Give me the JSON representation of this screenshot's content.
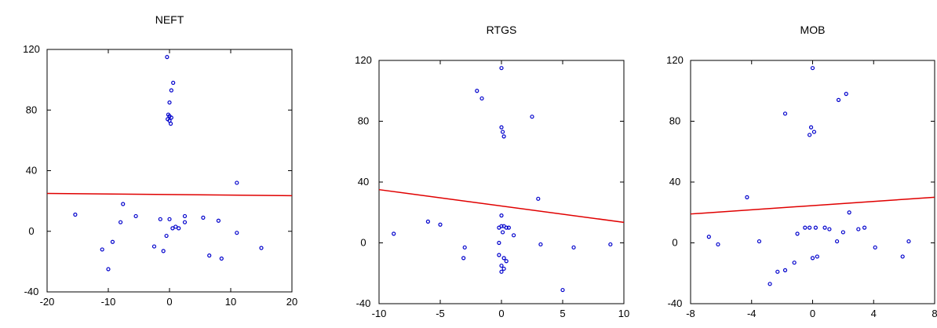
{
  "colors": {
    "points": "#0000cc",
    "fit_line": "#e00000",
    "frame": "#000000"
  },
  "chart_data": [
    {
      "type": "scatter",
      "title": "NEFT",
      "xlabel": "",
      "ylabel": "",
      "xlim": [
        -20,
        20
      ],
      "ylim": [
        -40,
        120
      ],
      "xticks": [
        -20,
        -10,
        0,
        10,
        20
      ],
      "xtick_labels": [
        "-20",
        "-10",
        "0",
        "10",
        "20"
      ],
      "yticks": [
        -40,
        0,
        40,
        80,
        120
      ],
      "ytick_labels": [
        "-40",
        "0",
        "40",
        "80",
        "120"
      ],
      "grid": false,
      "fit_line": {
        "x": [
          -20,
          20
        ],
        "y": [
          25,
          23.5
        ]
      },
      "points": [
        [
          -15.4,
          11
        ],
        [
          -7.6,
          18
        ],
        [
          -8,
          6
        ],
        [
          -5.5,
          10
        ],
        [
          -11,
          -12
        ],
        [
          -9.3,
          -7
        ],
        [
          -10,
          -25
        ],
        [
          -2.5,
          -10
        ],
        [
          -1.5,
          8
        ],
        [
          -1,
          -13
        ],
        [
          0,
          8
        ],
        [
          -0.5,
          -3
        ],
        [
          0.5,
          2
        ],
        [
          1,
          3
        ],
        [
          1.5,
          2
        ],
        [
          2.5,
          10
        ],
        [
          2.5,
          6
        ],
        [
          5.5,
          9
        ],
        [
          6.5,
          -16
        ],
        [
          8,
          7
        ],
        [
          8.5,
          -18
        ],
        [
          11,
          -1
        ],
        [
          11,
          32
        ],
        [
          15,
          -11
        ],
        [
          -0.4,
          115
        ],
        [
          0.6,
          98
        ],
        [
          0.3,
          93
        ],
        [
          0,
          85
        ],
        [
          -0.2,
          77
        ],
        [
          0,
          76
        ],
        [
          -0.3,
          74
        ],
        [
          0.3,
          75
        ],
        [
          0,
          73
        ],
        [
          0.2,
          71
        ]
      ]
    },
    {
      "type": "scatter",
      "title": "RTGS",
      "xlabel": "",
      "ylabel": "",
      "xlim": [
        -10,
        10
      ],
      "ylim": [
        -40,
        120
      ],
      "xticks": [
        -10,
        -5,
        0,
        5,
        10
      ],
      "xtick_labels": [
        "-10",
        "-5",
        "0",
        "5",
        "10"
      ],
      "yticks": [
        -40,
        0,
        40,
        80,
        120
      ],
      "ytick_labels": [
        "-40",
        "0",
        "40",
        "80",
        "120"
      ],
      "grid": false,
      "fit_line": {
        "x": [
          -10,
          10
        ],
        "y": [
          35,
          13.5
        ]
      },
      "points": [
        [
          -8.8,
          6
        ],
        [
          -6,
          14
        ],
        [
          -5,
          12
        ],
        [
          -3,
          -3
        ],
        [
          -3.1,
          -10
        ],
        [
          -2,
          100
        ],
        [
          -1.6,
          95
        ],
        [
          0,
          115
        ],
        [
          0,
          76
        ],
        [
          0.1,
          73
        ],
        [
          0.2,
          70
        ],
        [
          0,
          18
        ],
        [
          -0.2,
          10
        ],
        [
          0,
          11
        ],
        [
          0.2,
          11
        ],
        [
          0.4,
          10
        ],
        [
          0.6,
          10
        ],
        [
          0.1,
          7
        ],
        [
          -0.2,
          0
        ],
        [
          0.2,
          -10
        ],
        [
          0.4,
          -12
        ],
        [
          0,
          -15
        ],
        [
          0.2,
          -17
        ],
        [
          0,
          -19
        ],
        [
          -0.2,
          -8
        ],
        [
          1,
          5
        ],
        [
          2.5,
          83
        ],
        [
          3,
          29
        ],
        [
          3.2,
          -1
        ],
        [
          5,
          -31
        ],
        [
          5.9,
          -3
        ],
        [
          8.9,
          -1
        ]
      ]
    },
    {
      "type": "scatter",
      "title": "MOB",
      "xlabel": "",
      "ylabel": "",
      "xlim": [
        -8,
        8
      ],
      "ylim": [
        -40,
        120
      ],
      "xticks": [
        -8,
        -4,
        0,
        4,
        8
      ],
      "xtick_labels": [
        "-8",
        "-4",
        "0",
        "4",
        "8"
      ],
      "yticks": [
        -40,
        0,
        40,
        80,
        120
      ],
      "ytick_labels": [
        "-40",
        "0",
        "40",
        "80",
        "120"
      ],
      "grid": false,
      "fit_line": {
        "x": [
          -8,
          8
        ],
        "y": [
          19,
          30
        ]
      },
      "points": [
        [
          -6.8,
          4
        ],
        [
          -6.2,
          -1
        ],
        [
          -4.3,
          30
        ],
        [
          -3.5,
          1
        ],
        [
          -2.8,
          -27
        ],
        [
          -2.3,
          -19
        ],
        [
          -1.8,
          -18
        ],
        [
          -1.2,
          -13
        ],
        [
          -1,
          6
        ],
        [
          -0.5,
          10
        ],
        [
          -0.2,
          10
        ],
        [
          0,
          -10
        ],
        [
          0.3,
          -9
        ],
        [
          0.2,
          10
        ],
        [
          0.8,
          10
        ],
        [
          1.1,
          9
        ],
        [
          1.6,
          1
        ],
        [
          2,
          7
        ],
        [
          2.4,
          20
        ],
        [
          3,
          9
        ],
        [
          3.4,
          10
        ],
        [
          4.1,
          -3
        ],
        [
          5.9,
          -9
        ],
        [
          6.3,
          1
        ],
        [
          -1.8,
          85
        ],
        [
          0,
          115
        ],
        [
          -0.1,
          76
        ],
        [
          0.1,
          73
        ],
        [
          -0.2,
          71
        ],
        [
          1.7,
          94
        ],
        [
          2.2,
          98
        ]
      ]
    }
  ]
}
